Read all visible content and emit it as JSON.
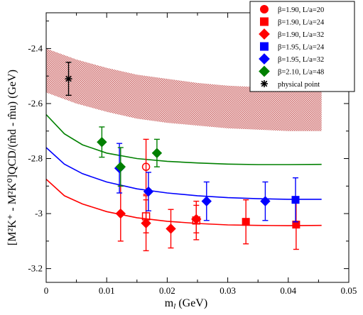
{
  "chart_data": {
    "type": "scatter",
    "xlabel_main": "m",
    "xlabel_sub": "l",
    "xlabel_unit": " (GeV)",
    "ylabel_text": "[M²K⁺ - M²K⁰]QCD/(m̂d - m̂u)  (GeV)",
    "xlim": [
      0,
      0.05
    ],
    "ylim": [
      -3.25,
      -2.27
    ],
    "x_ticks": [
      0,
      0.01,
      0.02,
      0.03,
      0.04,
      0.05
    ],
    "x_tick_labels": [
      "0",
      "0.01",
      "0.02",
      "0.03",
      "0.04",
      "0.05"
    ],
    "y_ticks": [
      -3.2,
      -3.0,
      -2.8,
      -2.6,
      -2.4
    ],
    "y_tick_labels": [
      "-3.2",
      "-3",
      "-2.8",
      "-2.6",
      "-2.4"
    ],
    "grid": false,
    "legend_position": "top-right",
    "band": {
      "color": "#c85a5a",
      "x": [
        0.0,
        0.005,
        0.01,
        0.015,
        0.02,
        0.025,
        0.03,
        0.035,
        0.04,
        0.0455
      ],
      "upper": [
        -2.4,
        -2.44,
        -2.47,
        -2.495,
        -2.51,
        -2.525,
        -2.535,
        -2.54,
        -2.545,
        -2.545
      ],
      "lower": [
        -2.56,
        -2.6,
        -2.63,
        -2.655,
        -2.67,
        -2.68,
        -2.69,
        -2.695,
        -2.7,
        -2.7
      ]
    },
    "fit_curves": [
      {
        "color": "#ff0000",
        "x": [
          0,
          0.003,
          0.006,
          0.01,
          0.015,
          0.02,
          0.025,
          0.03,
          0.035,
          0.04,
          0.0455
        ],
        "y": [
          -2.875,
          -2.935,
          -2.965,
          -2.993,
          -3.015,
          -3.028,
          -3.036,
          -3.041,
          -3.043,
          -3.044,
          -3.043
        ]
      },
      {
        "color": "#0000ff",
        "x": [
          0,
          0.003,
          0.006,
          0.01,
          0.015,
          0.02,
          0.025,
          0.03,
          0.035,
          0.04,
          0.0455
        ],
        "y": [
          -2.76,
          -2.82,
          -2.855,
          -2.885,
          -2.91,
          -2.925,
          -2.935,
          -2.942,
          -2.946,
          -2.948,
          -2.948
        ]
      },
      {
        "color": "#008000",
        "x": [
          0,
          0.003,
          0.006,
          0.01,
          0.015,
          0.02,
          0.025,
          0.03,
          0.035,
          0.04,
          0.0455
        ],
        "y": [
          -2.64,
          -2.71,
          -2.75,
          -2.78,
          -2.8,
          -2.81,
          -2.816,
          -2.82,
          -2.822,
          -2.822,
          -2.821
        ]
      }
    ],
    "series": [
      {
        "name": "β=1.90, L/a=20",
        "color": "#ff0000",
        "marker": "circle",
        "points": [
          {
            "x": 0.0165,
            "y": -2.83,
            "yerr": 0.1,
            "filled": false
          }
        ]
      },
      {
        "name": "β=1.90, L/a=24",
        "color": "#ff0000",
        "marker": "square",
        "points": [
          {
            "x": 0.0165,
            "y": -3.01,
            "yerr": 0.06,
            "filled": false
          },
          {
            "x": 0.0248,
            "y": -3.025,
            "yerr": 0.07,
            "filled": false
          },
          {
            "x": 0.033,
            "y": -3.03,
            "yerr": 0.08,
            "filled": true
          },
          {
            "x": 0.0413,
            "y": -3.04,
            "yerr": 0.09,
            "filled": true
          }
        ]
      },
      {
        "name": "β=1.90, L/a=32",
        "color": "#ff0000",
        "marker": "diamond",
        "points": [
          {
            "x": 0.0123,
            "y": -3.0,
            "yerr": 0.1,
            "filled": true
          },
          {
            "x": 0.0165,
            "y": -3.035,
            "yerr": 0.1,
            "filled": true
          },
          {
            "x": 0.0206,
            "y": -3.055,
            "yerr": 0.07,
            "filled": true
          },
          {
            "x": 0.0248,
            "y": -3.02,
            "yerr": 0.05,
            "filled": true
          }
        ]
      },
      {
        "name": "β=1.95, L/a=24",
        "color": "#0000ff",
        "marker": "square",
        "points": [
          {
            "x": 0.0412,
            "y": -2.95,
            "yerr": 0.08,
            "filled": true
          }
        ]
      },
      {
        "name": "β=1.95, L/a=32",
        "color": "#0000ff",
        "marker": "diamond",
        "points": [
          {
            "x": 0.0121,
            "y": -2.835,
            "yerr": 0.09,
            "filled": true
          },
          {
            "x": 0.0169,
            "y": -2.92,
            "yerr": 0.07,
            "filled": true
          },
          {
            "x": 0.0265,
            "y": -2.955,
            "yerr": 0.07,
            "filled": true
          },
          {
            "x": 0.0362,
            "y": -2.955,
            "yerr": 0.07,
            "filled": true
          }
        ]
      },
      {
        "name": "β=2.10, L/a=48",
        "color": "#008000",
        "marker": "diamond",
        "points": [
          {
            "x": 0.0092,
            "y": -2.74,
            "yerr": 0.055,
            "filled": true
          },
          {
            "x": 0.0123,
            "y": -2.83,
            "yerr": 0.07,
            "filled": true
          },
          {
            "x": 0.0183,
            "y": -2.78,
            "yerr": 0.05,
            "filled": true
          }
        ]
      },
      {
        "name": "physical point",
        "color": "#000000",
        "marker": "star",
        "points": [
          {
            "x": 0.0037,
            "y": -2.51,
            "yerr": 0.06,
            "filled": true
          }
        ]
      }
    ]
  }
}
